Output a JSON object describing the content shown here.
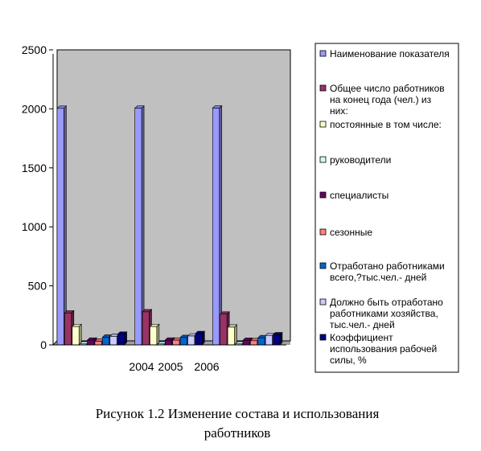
{
  "chart_data": {
    "type": "bar",
    "title": "",
    "xlabel": "",
    "ylabel": "",
    "ylim": [
      0,
      2500
    ],
    "yticks": [
      0,
      500,
      1000,
      1500,
      2000,
      2500
    ],
    "categories": [
      "2004",
      "2005",
      "2006"
    ],
    "grid": false,
    "legend_position": "right",
    "plot_background": "#c0c0c0",
    "series": [
      {
        "name": "Наименование показателя",
        "color": "#9999ff",
        "values": [
          2004,
          2005,
          2006
        ]
      },
      {
        "name": "Общее число работников на конец года (чел.) из них:",
        "color": "#993366",
        "values": [
          270,
          280,
          260
        ]
      },
      {
        "name": "постоянные  в том числе:",
        "color": "#ffffcc",
        "values": [
          155,
          155,
          150
        ]
      },
      {
        "name": "руководители",
        "color": "#ccffff",
        "values": [
          8,
          8,
          8
        ]
      },
      {
        "name": "специалисты",
        "color": "#660066",
        "values": [
          40,
          40,
          38
        ]
      },
      {
        "name": "сезонные",
        "color": "#ff8080",
        "values": [
          30,
          40,
          35
        ]
      },
      {
        "name": "Отработано работниками всего,?тыс.чел.- дней",
        "color": "#0066cc",
        "values": [
          65,
          62,
          60
        ]
      },
      {
        "name": "Должно быть отработано работниками хозяйства, тыс.чел.- дней",
        "color": "#ccccff",
        "values": [
          72,
          75,
          80
        ]
      },
      {
        "name": "Коэффициент использования рабочей силы, %",
        "color": "#000080",
        "values": [
          90,
          95,
          85
        ]
      }
    ],
    "legend_lines": [
      [
        "Наименование показателя"
      ],
      [
        "Общее число работников",
        "на конец года (чел.) из",
        "них:"
      ],
      [
        "постоянные  в том числе:"
      ],
      [
        "руководители"
      ],
      [
        "специалисты"
      ],
      [
        "сезонные"
      ],
      [
        "Отработано работниками",
        "всего,?тыс.чел.- дней"
      ],
      [
        "Должно быть отработано",
        "работниками хозяйства,",
        "тыс.чел.- дней"
      ],
      [
        "Коэффициент",
        "использования рабочей",
        "силы, %"
      ]
    ]
  },
  "caption": {
    "line1": "Рисунок 1.2 Изменение состава и использования",
    "line2": "работников"
  }
}
